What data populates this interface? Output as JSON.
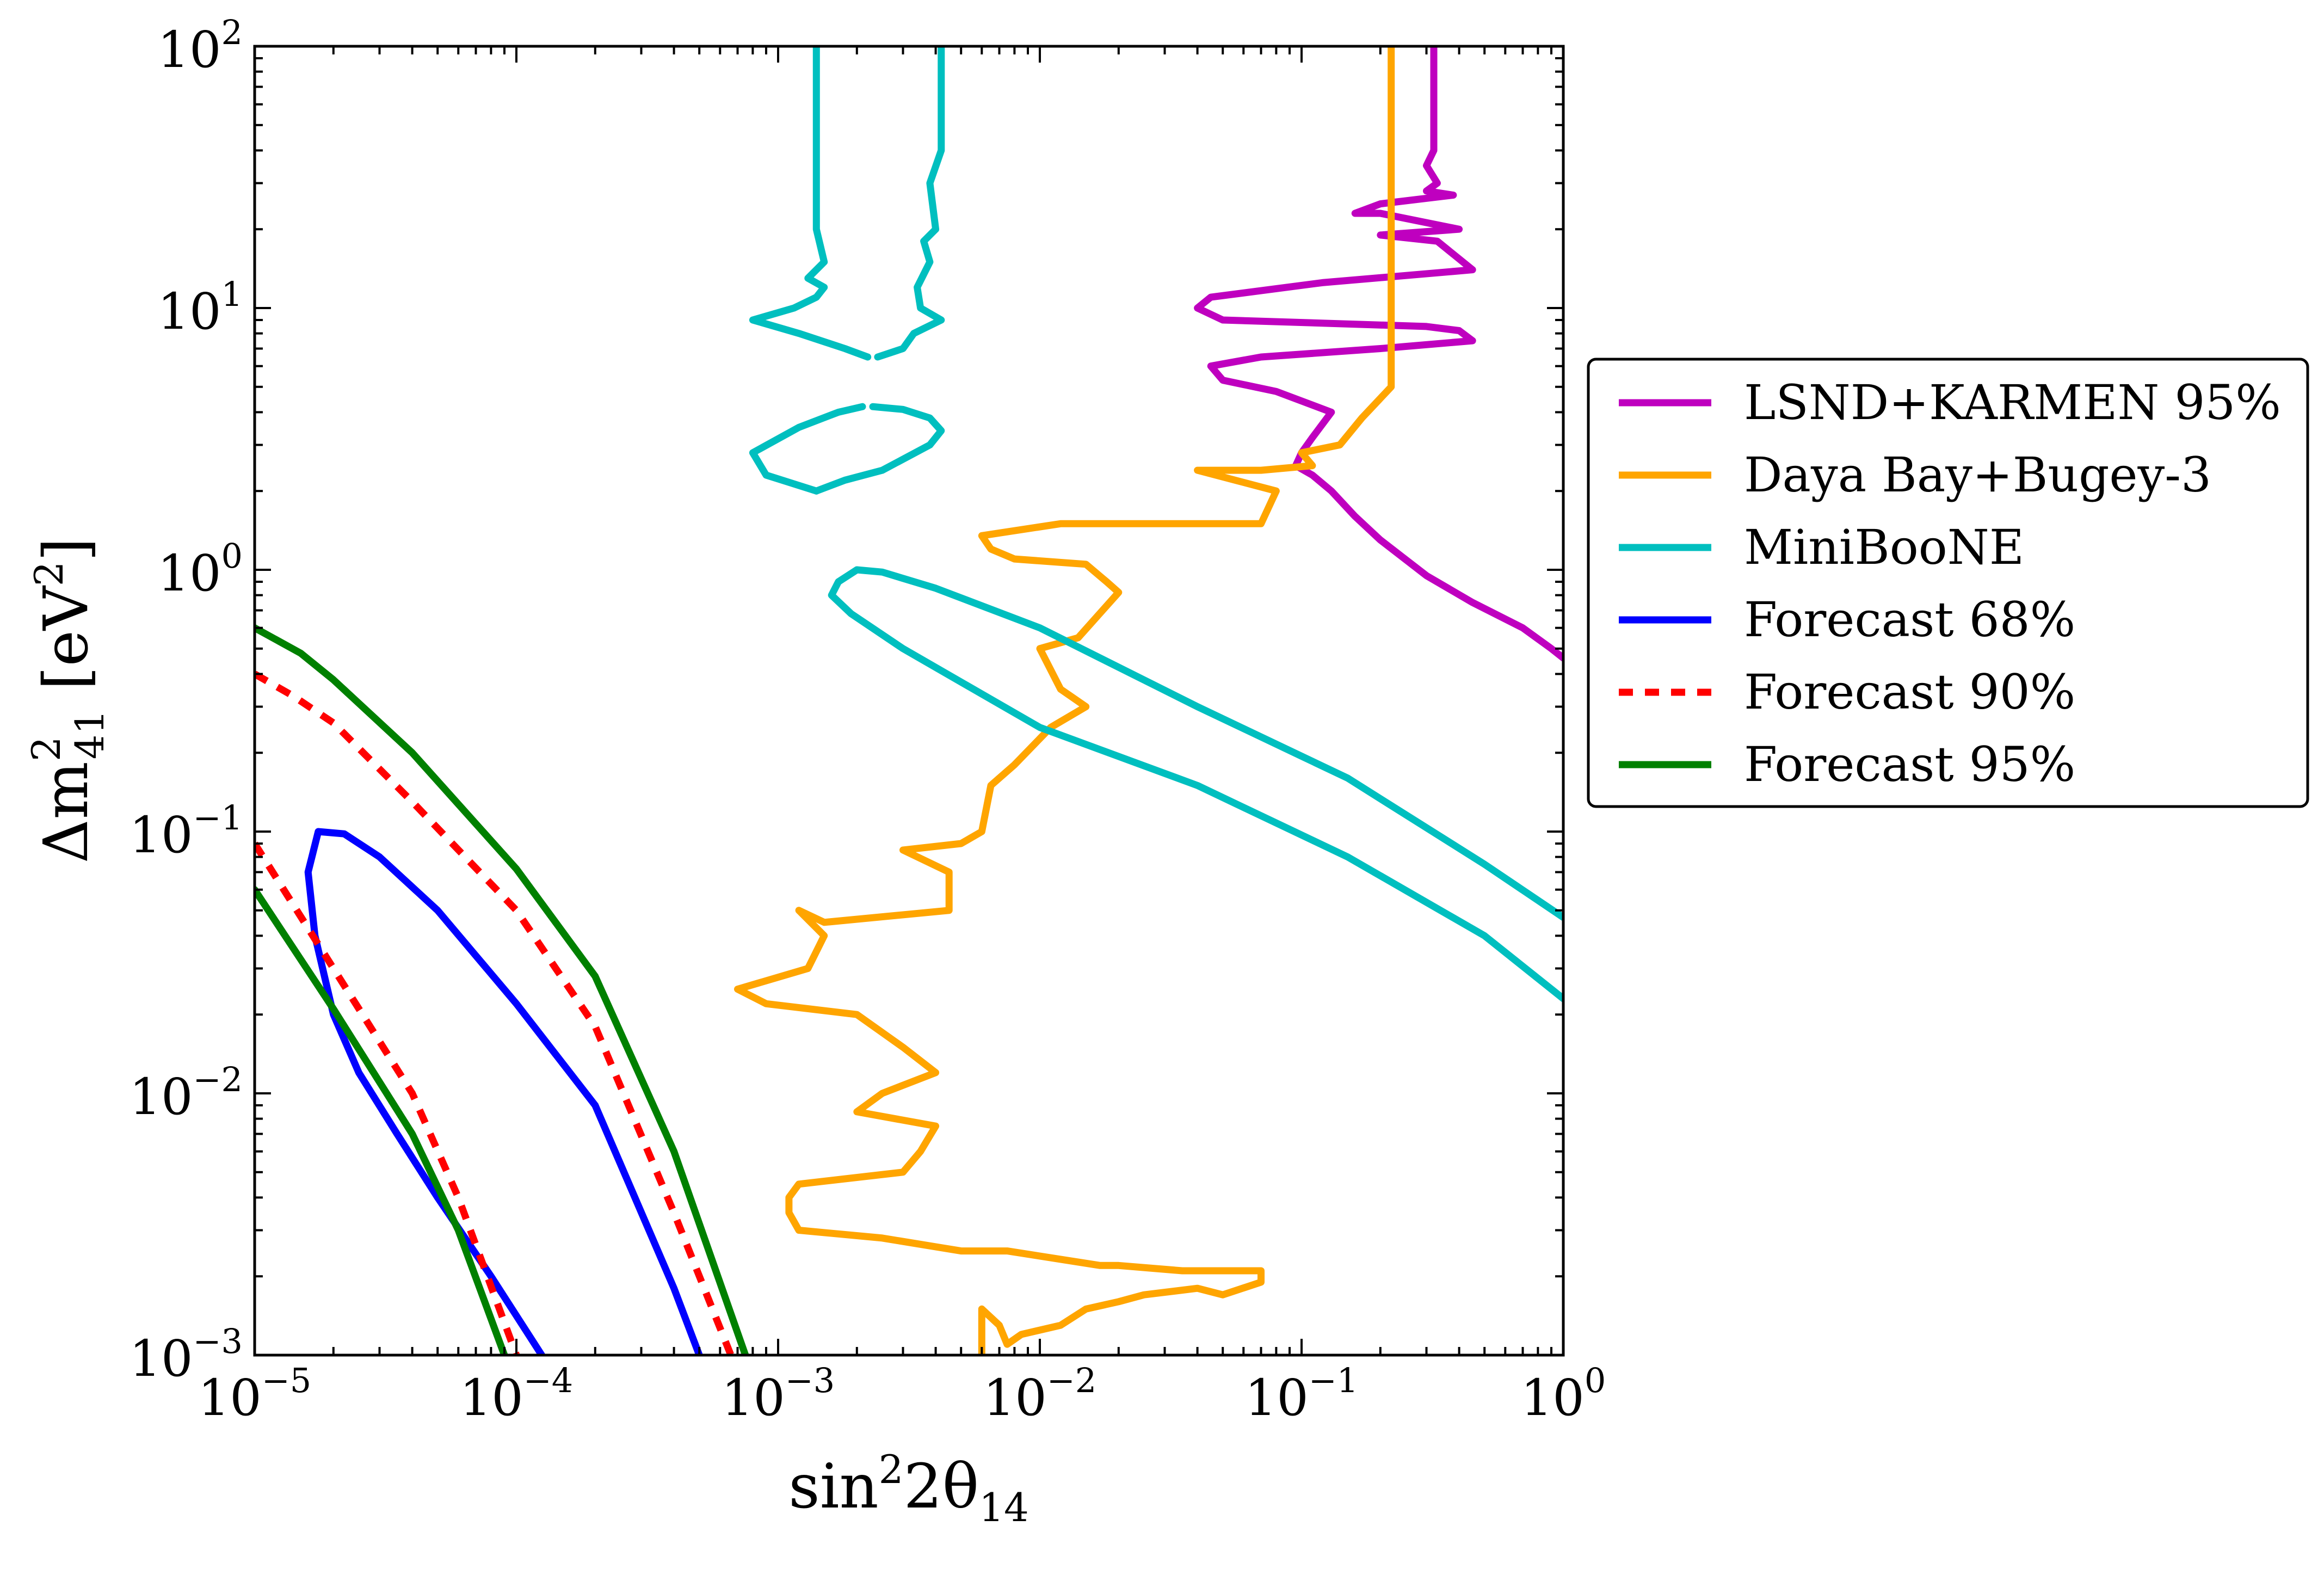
{
  "chart_data": {
    "type": "line",
    "xscale": "log",
    "yscale": "log",
    "xlim": [
      1e-05,
      1.0
    ],
    "ylim": [
      0.001,
      100.0
    ],
    "xlabel": {
      "base": "sin",
      "sup": "2",
      "mid": "2θ",
      "sub": "14"
    },
    "ylabel": {
      "base": "Δm",
      "sup": "2",
      "sub": "41",
      "unit_open": " [eV",
      "unit_sup": "2",
      "unit_close": "]"
    },
    "x_ticks": [
      {
        "value": 1e-05,
        "base": "10",
        "exp": "−5"
      },
      {
        "value": 0.0001,
        "base": "10",
        "exp": "−4"
      },
      {
        "value": 0.001,
        "base": "10",
        "exp": "−3"
      },
      {
        "value": 0.01,
        "base": "10",
        "exp": "−2"
      },
      {
        "value": 0.1,
        "base": "10",
        "exp": "−1"
      },
      {
        "value": 1.0,
        "base": "10",
        "exp": "0"
      }
    ],
    "y_ticks": [
      {
        "value": 0.001,
        "base": "10",
        "exp": "−3"
      },
      {
        "value": 0.01,
        "base": "10",
        "exp": "−2"
      },
      {
        "value": 0.1,
        "base": "10",
        "exp": "−1"
      },
      {
        "value": 1.0,
        "base": "10",
        "exp": "0"
      },
      {
        "value": 10.0,
        "base": "10",
        "exp": "1"
      },
      {
        "value": 100.0,
        "base": "10",
        "exp": "2"
      }
    ],
    "legend": {
      "placement": "right, outside plot"
    },
    "series": [
      {
        "name": "LSND+KARMEN 95%",
        "color": "#bf00bf",
        "dash": "solid",
        "paths": [
          [
            [
              0.32,
              100
            ],
            [
              0.32,
              40
            ],
            [
              0.3,
              35
            ],
            [
              0.33,
              30
            ],
            [
              0.3,
              28
            ],
            [
              0.38,
              27
            ],
            [
              0.2,
              25
            ],
            [
              0.16,
              23
            ],
            [
              0.2,
              23
            ],
            [
              0.4,
              20
            ],
            [
              0.2,
              19
            ],
            [
              0.33,
              18
            ],
            [
              0.45,
              14
            ],
            [
              0.12,
              12.5
            ],
            [
              0.045,
              11
            ],
            [
              0.04,
              10
            ],
            [
              0.05,
              9
            ],
            [
              0.3,
              8.5
            ],
            [
              0.4,
              8.2
            ],
            [
              0.45,
              7.5
            ],
            [
              0.2,
              7
            ],
            [
              0.07,
              6.5
            ],
            [
              0.045,
              6
            ],
            [
              0.05,
              5.3
            ],
            [
              0.08,
              4.8
            ],
            [
              0.13,
              4
            ],
            [
              0.11,
              3.2
            ],
            [
              0.1,
              2.8
            ],
            [
              0.095,
              2.5
            ],
            [
              0.11,
              2.3
            ],
            [
              0.13,
              2
            ],
            [
              0.16,
              1.6
            ],
            [
              0.2,
              1.3
            ],
            [
              0.3,
              0.95
            ],
            [
              0.45,
              0.75
            ],
            [
              0.7,
              0.6
            ],
            [
              0.9,
              0.5
            ],
            [
              1.0,
              0.46
            ]
          ]
        ]
      },
      {
        "name": "Daya Bay+Bugey-3",
        "color": "#ffa500",
        "dash": "solid",
        "paths": [
          [
            [
              0.22,
              100
            ],
            [
              0.22,
              5
            ],
            [
              0.17,
              3.8
            ],
            [
              0.14,
              3.0
            ],
            [
              0.1,
              2.8
            ],
            [
              0.11,
              2.5
            ],
            [
              0.07,
              2.4
            ],
            [
              0.04,
              2.4
            ],
            [
              0.08,
              2.0
            ],
            [
              0.07,
              1.5
            ],
            [
              0.012,
              1.5
            ],
            [
              0.006,
              1.35
            ],
            [
              0.0065,
              1.2
            ],
            [
              0.008,
              1.1
            ],
            [
              0.015,
              1.05
            ],
            [
              0.018,
              0.9
            ],
            [
              0.02,
              0.82
            ],
            [
              0.014,
              0.55
            ],
            [
              0.01,
              0.5
            ],
            [
              0.012,
              0.35
            ],
            [
              0.015,
              0.3
            ],
            [
              0.011,
              0.25
            ],
            [
              0.008,
              0.18
            ],
            [
              0.0065,
              0.15
            ],
            [
              0.006,
              0.1
            ],
            [
              0.005,
              0.09
            ],
            [
              0.003,
              0.085
            ],
            [
              0.0045,
              0.07
            ],
            [
              0.0045,
              0.05
            ],
            [
              0.0015,
              0.045
            ],
            [
              0.0012,
              0.05
            ],
            [
              0.0015,
              0.04
            ],
            [
              0.0013,
              0.03
            ],
            [
              0.0007,
              0.025
            ],
            [
              0.0009,
              0.022
            ],
            [
              0.002,
              0.02
            ],
            [
              0.003,
              0.015
            ],
            [
              0.004,
              0.012
            ],
            [
              0.0025,
              0.01
            ],
            [
              0.002,
              0.0085
            ],
            [
              0.004,
              0.0075
            ],
            [
              0.0035,
              0.006
            ],
            [
              0.003,
              0.005
            ],
            [
              0.0012,
              0.0045
            ],
            [
              0.0011,
              0.004
            ],
            [
              0.0011,
              0.0035
            ],
            [
              0.0012,
              0.003
            ],
            [
              0.0025,
              0.0028
            ],
            [
              0.005,
              0.0025
            ],
            [
              0.0075,
              0.0025
            ],
            [
              0.017,
              0.0022
            ],
            [
              0.02,
              0.0022
            ],
            [
              0.035,
              0.0021
            ],
            [
              0.07,
              0.0021
            ],
            [
              0.07,
              0.0019
            ],
            [
              0.05,
              0.0017
            ],
            [
              0.04,
              0.0018
            ],
            [
              0.025,
              0.0017
            ],
            [
              0.02,
              0.0016
            ],
            [
              0.015,
              0.0015
            ],
            [
              0.012,
              0.0013
            ],
            [
              0.0085,
              0.0012
            ],
            [
              0.0075,
              0.0011
            ],
            [
              0.007,
              0.0013
            ],
            [
              0.006,
              0.0015
            ],
            [
              0.006,
              0.0012
            ],
            [
              0.006,
              0.001
            ]
          ]
        ]
      },
      {
        "name": "MiniBooNE",
        "color": "#00bfbf",
        "dash": "solid",
        "paths": [
          [
            [
              0.0014,
              100
            ],
            [
              0.0014,
              20
            ],
            [
              0.0015,
              15
            ],
            [
              0.0013,
              13
            ],
            [
              0.0015,
              12
            ],
            [
              0.0014,
              11
            ],
            [
              0.00115,
              10
            ],
            [
              0.0008,
              9
            ],
            [
              0.0012,
              8
            ],
            [
              0.0018,
              7
            ],
            [
              0.0022,
              6.5
            ]
          ],
          [
            [
              0.0024,
              6.5
            ],
            [
              0.003,
              7
            ],
            [
              0.0033,
              8
            ],
            [
              0.0042,
              9
            ],
            [
              0.0035,
              10
            ],
            [
              0.0034,
              12
            ],
            [
              0.0038,
              15
            ],
            [
              0.0036,
              18
            ],
            [
              0.004,
              20
            ],
            [
              0.0038,
              30
            ],
            [
              0.0042,
              40
            ],
            [
              0.0042,
              100
            ]
          ],
          [
            [
              0.0023,
              4.2
            ],
            [
              0.003,
              4.1
            ],
            [
              0.0038,
              3.8
            ],
            [
              0.0042,
              3.4
            ],
            [
              0.0038,
              3.0
            ],
            [
              0.0025,
              2.4
            ],
            [
              0.0018,
              2.2
            ],
            [
              0.0014,
              2.0
            ]
          ],
          [
            [
              0.0014,
              2.0
            ],
            [
              0.0009,
              2.3
            ],
            [
              0.0008,
              2.8
            ],
            [
              0.0012,
              3.5
            ],
            [
              0.0017,
              4.0
            ],
            [
              0.0021,
              4.2
            ]
          ],
          [
            [
              0.002,
              1.0
            ],
            [
              0.0017,
              0.9
            ],
            [
              0.0016,
              0.8
            ],
            [
              0.0019,
              0.68
            ],
            [
              0.003,
              0.5
            ],
            [
              0.01,
              0.25
            ],
            [
              0.04,
              0.15
            ],
            [
              0.15,
              0.08
            ],
            [
              0.5,
              0.04
            ],
            [
              1.0,
              0.023
            ]
          ],
          [
            [
              0.002,
              1.0
            ],
            [
              0.0025,
              0.98
            ],
            [
              0.004,
              0.85
            ],
            [
              0.01,
              0.6
            ],
            [
              0.04,
              0.3
            ],
            [
              0.15,
              0.16
            ],
            [
              0.5,
              0.075
            ],
            [
              1.0,
              0.047
            ]
          ]
        ]
      },
      {
        "name": "Forecast 68%",
        "color": "#0000ff",
        "dash": "solid",
        "paths": [
          [
            [
              0.000125,
              0.001
            ],
            [
              8e-05,
              0.002
            ],
            [
              5e-05,
              0.004
            ],
            [
              3.5e-05,
              0.007
            ],
            [
              2.5e-05,
              0.012
            ],
            [
              2e-05,
              0.02
            ],
            [
              1.7e-05,
              0.04
            ],
            [
              1.6e-05,
              0.07
            ],
            [
              1.75e-05,
              0.1
            ],
            [
              2.2e-05,
              0.098
            ],
            [
              3e-05,
              0.08
            ],
            [
              5e-05,
              0.05
            ],
            [
              0.0001,
              0.022
            ],
            [
              0.0002,
              0.009
            ],
            [
              0.0004,
              0.0018
            ],
            [
              0.0005,
              0.001
            ]
          ]
        ]
      },
      {
        "name": "Forecast 90%",
        "color": "#ff0000",
        "dash": "dashed",
        "paths": [
          [
            [
              1e-05,
              0.09
            ],
            [
              2e-05,
              0.03
            ],
            [
              4e-05,
              0.01
            ],
            [
              6e-05,
              0.004
            ],
            [
              0.0001,
              0.001
            ]
          ],
          [
            [
              1e-05,
              0.4
            ],
            [
              1.4e-05,
              0.33
            ],
            [
              2e-05,
              0.26
            ],
            [
              4e-05,
              0.13
            ],
            [
              0.0001,
              0.05
            ],
            [
              0.0002,
              0.018
            ],
            [
              0.0004,
              0.0035
            ],
            [
              0.00066,
              0.001
            ]
          ]
        ]
      },
      {
        "name": "Forecast 95%",
        "color": "#008000",
        "dash": "solid",
        "paths": [
          [
            [
              1e-05,
              0.06
            ],
            [
              2e-05,
              0.021
            ],
            [
              4e-05,
              0.007
            ],
            [
              6e-05,
              0.003
            ],
            [
              9e-05,
              0.001
            ]
          ],
          [
            [
              1e-05,
              0.6
            ],
            [
              1.5e-05,
              0.48
            ],
            [
              2e-05,
              0.38
            ],
            [
              4e-05,
              0.2
            ],
            [
              0.0001,
              0.072
            ],
            [
              0.0002,
              0.028
            ],
            [
              0.0004,
              0.006
            ],
            [
              0.00075,
              0.001
            ]
          ]
        ]
      }
    ]
  }
}
